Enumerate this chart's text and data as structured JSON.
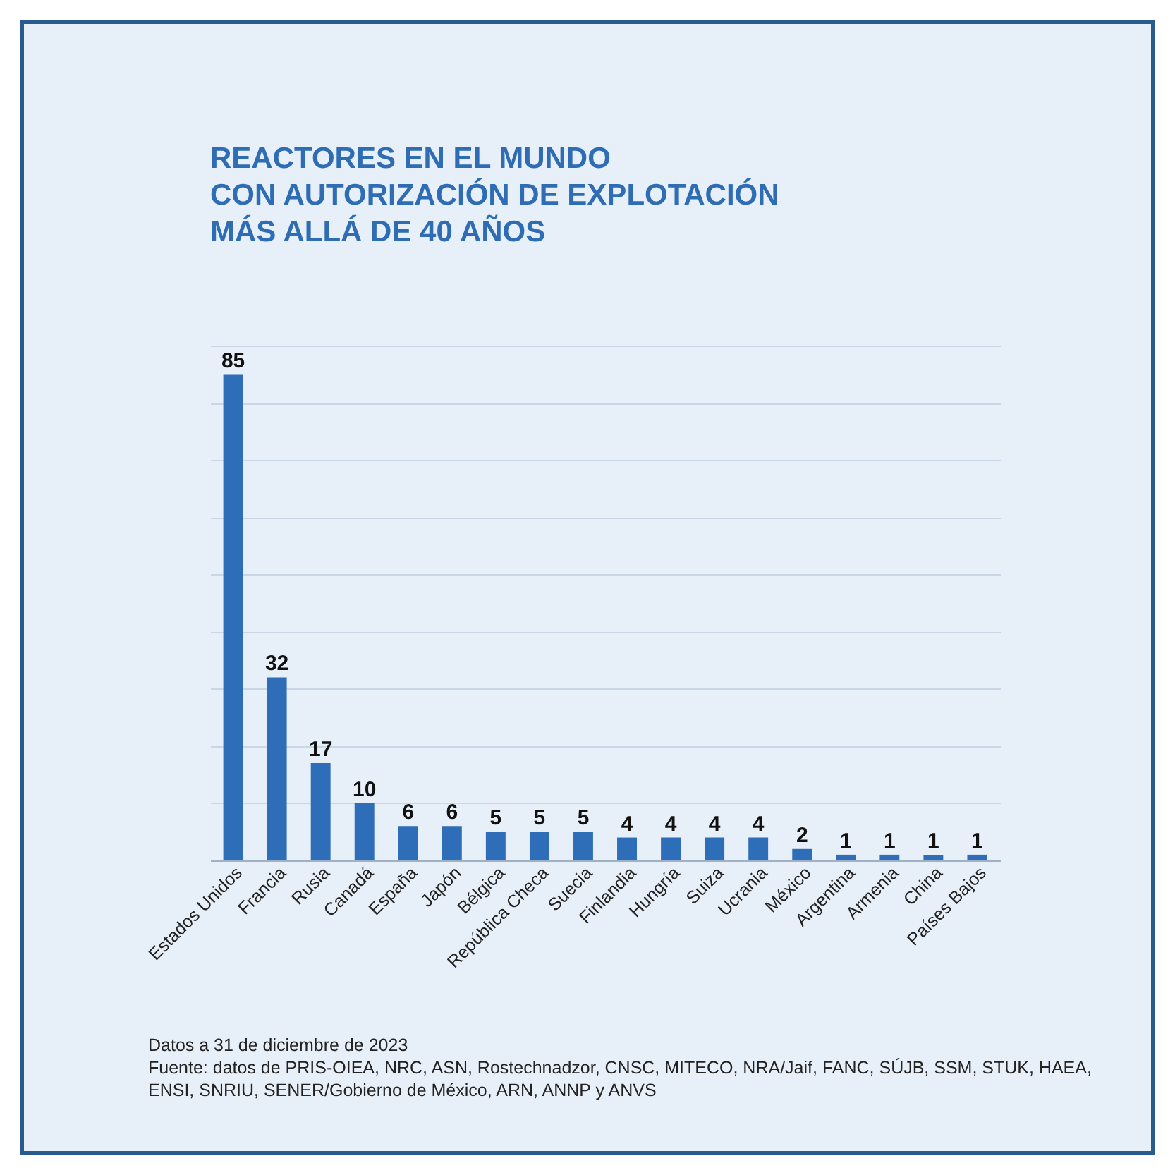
{
  "chart_data": {
    "type": "bar",
    "title": "REACTORES EN EL MUNDO\nCON AUTORIZACIÓN DE EXPLOTACIÓN\nMÁS ALLÁ DE 40 AÑOS",
    "categories": [
      "Estados Unidos",
      "Francia",
      "Rusia",
      "Canadá",
      "España",
      "Japón",
      "Bélgica",
      "República Checa",
      "Suecia",
      "Finlandia",
      "Hungría",
      "Suiza",
      "Ucrania",
      "México",
      "Argentina",
      "Armenia",
      "China",
      "Países Bajos"
    ],
    "values": [
      85,
      32,
      17,
      10,
      6,
      6,
      5,
      5,
      5,
      4,
      4,
      4,
      4,
      2,
      1,
      1,
      1,
      1
    ],
    "color": "#2e6db8",
    "ylim": [
      0,
      90
    ],
    "yticks": [
      {
        "value": 0,
        "label": null
      },
      {
        "value": 10,
        "label": null
      },
      {
        "value": 20,
        "label": null
      },
      {
        "value": 30,
        "label": null
      },
      {
        "value": 40,
        "label": null
      },
      {
        "value": 50,
        "label": null
      },
      {
        "value": 60,
        "label": null
      },
      {
        "value": 70,
        "label": null
      },
      {
        "value": 80,
        "label": null
      },
      {
        "value": 90,
        "label": null
      }
    ],
    "grid": "y",
    "tick_labels": "x",
    "data_labels": true,
    "annotations": [
      "Datos a 31 de diciembre de 2023",
      "Fuente: datos de PRIS-OIEA, NRC, ASN, Rostechnadzor, CNSC, MITECO, NRA/Jaif, FANC, SÚJB, SSM, STUK, HAEA, ENSI, SNRIU, SENER/Gobierno de México, ARN, ANNP y ANVS"
    ]
  }
}
